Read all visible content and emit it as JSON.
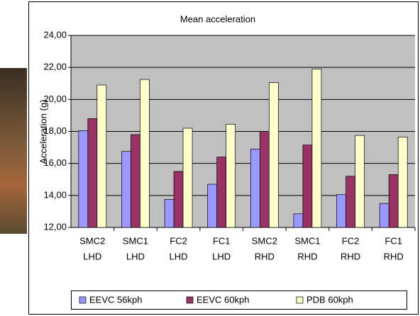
{
  "chart_data": {
    "type": "bar",
    "title": "Mean acceleration",
    "y_label": "Acceleration (g)",
    "categories": [
      [
        "SMC2",
        "LHD"
      ],
      [
        "SMC1",
        "LHD"
      ],
      [
        "FC2",
        "LHD"
      ],
      [
        "FC1",
        "LHD"
      ],
      [
        "SMC2",
        "RHD"
      ],
      [
        "SMC1",
        "RHD"
      ],
      [
        "FC2",
        "RHD"
      ],
      [
        "FC1",
        "RHD"
      ]
    ],
    "series": [
      {
        "name": "EEVC 56kph",
        "color": "#9999ff",
        "values": [
          18.05,
          16.75,
          13.75,
          14.7,
          16.9,
          12.85,
          14.05,
          13.5
        ]
      },
      {
        "name": "EEVC 60kph",
        "color": "#993366",
        "values": [
          18.8,
          17.8,
          15.5,
          16.4,
          18.0,
          17.15,
          15.2,
          15.3
        ]
      },
      {
        "name": "PDB 60kph",
        "color": "#ffffcc",
        "values": [
          20.9,
          21.25,
          18.2,
          18.45,
          21.05,
          21.9,
          17.75,
          17.65
        ]
      }
    ],
    "ylim": [
      12,
      24
    ],
    "yticks": [
      {
        "value": 12,
        "label": "12,00"
      },
      {
        "value": 14,
        "label": "14,00"
      },
      {
        "value": 16,
        "label": "16,00"
      },
      {
        "value": 18,
        "label": "18,00"
      },
      {
        "value": 20,
        "label": "20,00"
      },
      {
        "value": 22,
        "label": "22,00"
      },
      {
        "value": 24,
        "label": "24,00"
      }
    ],
    "grid": true,
    "plot_background": "#c0c0c0",
    "legend": "bottom"
  }
}
